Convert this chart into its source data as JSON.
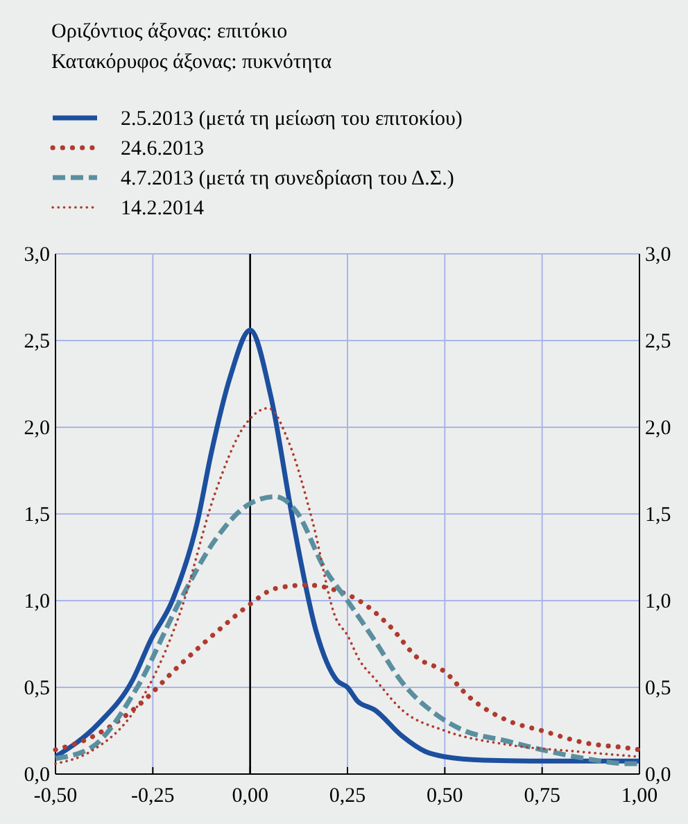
{
  "chart_data": {
    "type": "line",
    "title": "Οριζόντιος άξονας: επιτόκιο",
    "subtitle": "Κατακόρυφος άξονας: πυκνότητα",
    "xlim": [
      -0.5,
      1.0
    ],
    "xticks": [
      {
        "value": -0.5,
        "label": "-0,50"
      },
      {
        "value": -0.25,
        "label": "-0,25"
      },
      {
        "value": 0,
        "label": "0,00"
      },
      {
        "value": 0.25,
        "label": "0,25"
      },
      {
        "value": 0.5,
        "label": "0,50"
      },
      {
        "value": 0.75,
        "label": "0,75"
      },
      {
        "value": 1.0,
        "label": "1,00"
      }
    ],
    "ylim": [
      0,
      3
    ],
    "yticks": [
      {
        "value": 0,
        "label": "0,0"
      },
      {
        "value": 0.5,
        "label": "0,5"
      },
      {
        "value": 1,
        "label": "1,0"
      },
      {
        "value": 1.5,
        "label": "1,5"
      },
      {
        "value": 2,
        "label": "2,0"
      },
      {
        "value": 2.5,
        "label": "2,5"
      },
      {
        "value": 3,
        "label": "3,0"
      }
    ],
    "y2lim": [
      0,
      3
    ],
    "y2ticks": [
      {
        "value": 0,
        "label": "0,0"
      },
      {
        "value": 0.5,
        "label": "0,5"
      },
      {
        "value": 1,
        "label": "1,0"
      },
      {
        "value": 1.5,
        "label": "1,5"
      },
      {
        "value": 2,
        "label": "2,0"
      },
      {
        "value": 2.5,
        "label": "2,5"
      },
      {
        "value": 3,
        "label": "3,0"
      }
    ],
    "grid": true,
    "legend": "top left",
    "marker": "none",
    "ref_lines": [
      {
        "axis": "x",
        "value": 0,
        "color": "#000000"
      }
    ],
    "series": [
      {
        "name": "2.5.2013 (μετά τη μείωση του επιτοκίου)",
        "color": "#1c4f9e",
        "line_style": "solid",
        "x": [
          -0.5,
          -0.39,
          -0.3,
          -0.256,
          -0.2,
          -0.135,
          -0.1,
          -0.05,
          0,
          0.053,
          0.11,
          0.17,
          0.223,
          0.25,
          0.276,
          0.32,
          0.39,
          0.45,
          0.5,
          0.6,
          0.75,
          1.0
        ],
        "values": [
          0.1,
          0.29,
          0.55,
          0.77,
          1.0,
          1.46,
          1.85,
          2.3,
          2.56,
          2.18,
          1.46,
          0.82,
          0.54,
          0.5,
          0.42,
          0.37,
          0.22,
          0.13,
          0.1,
          0.08,
          0.075,
          0.075
        ]
      },
      {
        "name": "24.6.2013",
        "color": "#b03a2e",
        "line_style": "dotted",
        "x": [
          -0.5,
          -0.41,
          -0.29,
          -0.18,
          -0.06,
          0,
          0.065,
          0.147,
          0.22,
          0.28,
          0.36,
          0.43,
          0.5,
          0.56,
          0.66,
          0.75,
          0.86,
          0.97,
          1.0
        ],
        "values": [
          0.14,
          0.21,
          0.39,
          0.63,
          0.87,
          0.98,
          1.07,
          1.09,
          1.06,
          1.0,
          0.85,
          0.67,
          0.59,
          0.45,
          0.31,
          0.25,
          0.18,
          0.15,
          0.14
        ]
      },
      {
        "name": "4.7.2013 (μετά τη συνεδρίαση του Δ.Σ.)",
        "color": "#5a8fa0",
        "line_style": "dashed",
        "x": [
          -0.5,
          -0.41,
          -0.29,
          -0.18,
          -0.09,
          0,
          0.065,
          0.12,
          0.19,
          0.25,
          0.32,
          0.39,
          0.48,
          0.54,
          0.66,
          0.75,
          0.86,
          0.97,
          1.0
        ],
        "values": [
          0.09,
          0.15,
          0.5,
          1.0,
          1.35,
          1.56,
          1.6,
          1.51,
          1.19,
          1.0,
          0.77,
          0.53,
          0.34,
          0.26,
          0.19,
          0.14,
          0.09,
          0.06,
          0.06
        ]
      },
      {
        "name": "14.2.2014",
        "color": "#b03a2e",
        "line_style": "dotted",
        "x": [
          -0.5,
          -0.41,
          -0.29,
          -0.18,
          -0.09,
          -0.02,
          0.047,
          0.1,
          0.16,
          0.22,
          0.25,
          0.28,
          0.32,
          0.39,
          0.5,
          0.66,
          0.84,
          1.0
        ],
        "values": [
          0.06,
          0.13,
          0.39,
          0.93,
          1.62,
          1.99,
          2.11,
          1.91,
          1.46,
          0.9,
          0.8,
          0.66,
          0.55,
          0.37,
          0.25,
          0.17,
          0.13,
          0.1
        ]
      }
    ]
  }
}
